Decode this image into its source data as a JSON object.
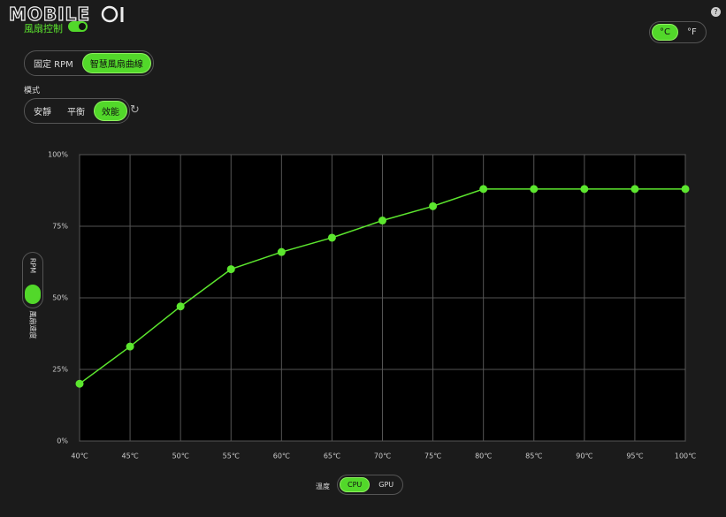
{
  "header": {
    "logo": "MOBILE",
    "fan_control": "風扇控制",
    "help": "?"
  },
  "unit_toggle": {
    "options": [
      "°C",
      "°F"
    ]
  },
  "curve_mode": {
    "options": [
      "固定 RPM",
      "智慧風扇曲線"
    ]
  },
  "mode": {
    "label": "模式",
    "options": [
      "安靜",
      "平衡",
      "效能"
    ]
  },
  "y_axis_toggle": {
    "label": "RPM",
    "title": "風扇速度"
  },
  "temp_source": {
    "label": "溫度",
    "options": [
      "CPU",
      "GPU"
    ]
  },
  "chart_data": {
    "type": "line",
    "categories": [
      "40℃",
      "45℃",
      "50℃",
      "55℃",
      "60℃",
      "65℃",
      "70℃",
      "75℃",
      "80℃",
      "85℃",
      "90℃",
      "95℃",
      "100℃"
    ],
    "values": [
      20,
      33,
      47,
      60,
      66,
      71,
      77,
      82,
      88,
      88,
      88,
      88,
      88
    ],
    "color": "#5ce62e",
    "ylim": [
      0,
      100
    ],
    "yticks": [
      {
        "value": 0,
        "label": "0%"
      },
      {
        "value": 25,
        "label": "25%"
      },
      {
        "value": 50,
        "label": "50%"
      },
      {
        "value": 75,
        "label": "75%"
      },
      {
        "value": 100,
        "label": "100%"
      }
    ],
    "grid": true
  }
}
